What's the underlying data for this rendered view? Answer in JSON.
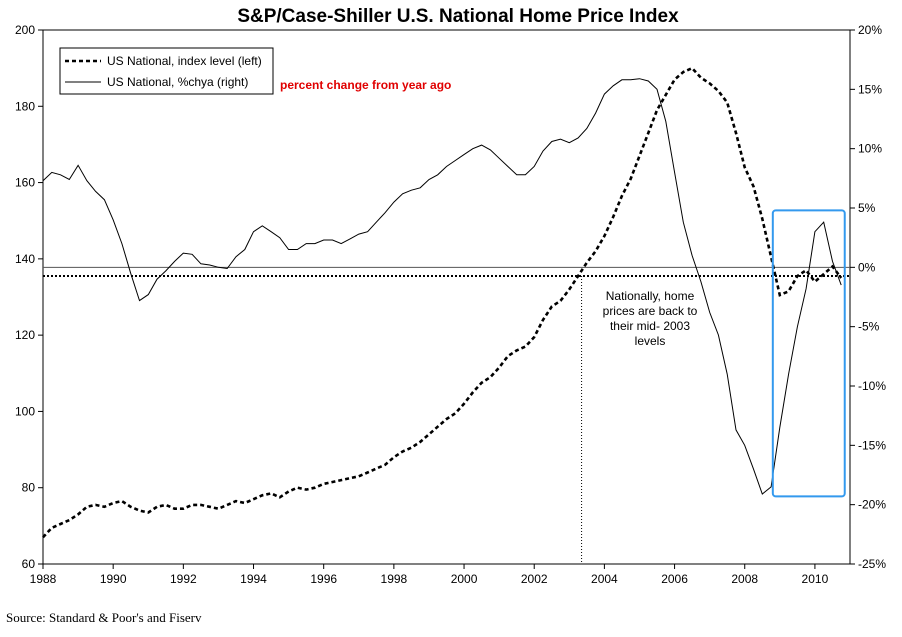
{
  "chart_data": {
    "type": "line",
    "title": "S&P/Case-Shiller U.S. National Home Price Index",
    "xlim": [
      1988,
      2011
    ],
    "x_ticks": [
      "1988",
      "1990",
      "1992",
      "1994",
      "1996",
      "1998",
      "2000",
      "2002",
      "2004",
      "2006",
      "2008",
      "2010"
    ],
    "y_left": {
      "lim": [
        60,
        200
      ],
      "ticks": [
        "60",
        "80",
        "100",
        "120",
        "140",
        "160",
        "180",
        "200"
      ]
    },
    "y_right": {
      "lim": [
        -25,
        20
      ],
      "ticks": [
        "-25%",
        "-20%",
        "-15%",
        "-10%",
        "-5%",
        "0%",
        "5%",
        "10%",
        "15%",
        "20%"
      ]
    },
    "legend": [
      {
        "label": "US National, index level (left)",
        "style": "dashed"
      },
      {
        "label": "US National, %chya (right)",
        "style": "solid"
      }
    ],
    "note": "percent change from year ago",
    "annotation": "Nationally, home prices are back to their mid- 2003 levels",
    "annotation_lines": [
      "Nationally, home",
      "prices are back to",
      "their mid- 2003",
      "levels"
    ],
    "reference_level": 135.5,
    "reference_year": 2003.35,
    "highlight_box": {
      "x_range": [
        2008.8,
        2010.85
      ],
      "y_right_range": [
        -19.3,
        4.8
      ],
      "color": "#3399ee"
    },
    "series": [
      {
        "name": "US National, index level (left)",
        "axis": "left",
        "style": "dashed",
        "x": [
          1988.0,
          1988.25,
          1988.5,
          1988.75,
          1989.0,
          1989.25,
          1989.5,
          1989.75,
          1990.0,
          1990.25,
          1990.5,
          1990.75,
          1991.0,
          1991.25,
          1991.5,
          1991.75,
          1992.0,
          1992.25,
          1992.5,
          1992.75,
          1993.0,
          1993.25,
          1993.5,
          1993.75,
          1994.0,
          1994.25,
          1994.5,
          1994.75,
          1995.0,
          1995.25,
          1995.5,
          1995.75,
          1996.0,
          1996.25,
          1996.5,
          1996.75,
          1997.0,
          1997.25,
          1997.5,
          1997.75,
          1998.0,
          1998.25,
          1998.5,
          1998.75,
          1999.0,
          1999.25,
          1999.5,
          1999.75,
          2000.0,
          2000.25,
          2000.5,
          2000.75,
          2001.0,
          2001.25,
          2001.5,
          2001.75,
          2002.0,
          2002.25,
          2002.5,
          2002.75,
          2003.0,
          2003.25,
          2003.5,
          2003.75,
          2004.0,
          2004.25,
          2004.5,
          2004.75,
          2005.0,
          2005.25,
          2005.5,
          2005.75,
          2006.0,
          2006.25,
          2006.5,
          2006.75,
          2007.0,
          2007.25,
          2007.5,
          2007.75,
          2008.0,
          2008.25,
          2008.5,
          2008.75,
          2009.0,
          2009.25,
          2009.5,
          2009.75,
          2010.0,
          2010.25,
          2010.5,
          2010.75
        ],
        "values": [
          67.0,
          69.5,
          70.5,
          71.5,
          73.0,
          75.0,
          75.5,
          75.0,
          76.0,
          76.5,
          75.0,
          74.0,
          73.5,
          75.0,
          75.5,
          74.5,
          74.5,
          75.5,
          75.5,
          75.0,
          74.5,
          75.5,
          76.5,
          76.0,
          77.0,
          78.0,
          78.5,
          77.5,
          79.0,
          80.0,
          79.5,
          80.0,
          81.0,
          81.5,
          82.0,
          82.5,
          83.0,
          84.0,
          85.0,
          86.0,
          88.0,
          89.5,
          90.5,
          92.0,
          94.0,
          96.0,
          98.0,
          99.5,
          102.0,
          105.0,
          107.5,
          109.0,
          111.5,
          114.5,
          116.0,
          117.0,
          119.5,
          124.0,
          127.5,
          129.0,
          132.0,
          135.5,
          139.0,
          142.0,
          146.0,
          151.0,
          156.5,
          161.0,
          167.0,
          173.0,
          179.0,
          183.0,
          187.0,
          189.0,
          190.0,
          187.5,
          186.0,
          184.0,
          181.0,
          173.0,
          164.0,
          159.0,
          150.5,
          140.5,
          130.5,
          131.5,
          135.5,
          137.0,
          134.0,
          136.0,
          138.0,
          135.0
        ]
      },
      {
        "name": "US National, %chya (right)",
        "axis": "right",
        "style": "solid",
        "x": [
          1988.0,
          1988.25,
          1988.5,
          1988.75,
          1989.0,
          1989.25,
          1989.5,
          1989.75,
          1990.0,
          1990.25,
          1990.5,
          1990.75,
          1991.0,
          1991.25,
          1991.5,
          1991.75,
          1992.0,
          1992.25,
          1992.5,
          1992.75,
          1993.0,
          1993.25,
          1993.5,
          1993.75,
          1994.0,
          1994.25,
          1994.5,
          1994.75,
          1995.0,
          1995.25,
          1995.5,
          1995.75,
          1996.0,
          1996.25,
          1996.5,
          1996.75,
          1997.0,
          1997.25,
          1997.5,
          1997.75,
          1998.0,
          1998.25,
          1998.5,
          1998.75,
          1999.0,
          1999.25,
          1999.5,
          1999.75,
          2000.0,
          2000.25,
          2000.5,
          2000.75,
          2001.0,
          2001.25,
          2001.5,
          2001.75,
          2002.0,
          2002.25,
          2002.5,
          2002.75,
          2003.0,
          2003.25,
          2003.5,
          2003.75,
          2004.0,
          2004.25,
          2004.5,
          2004.75,
          2005.0,
          2005.25,
          2005.5,
          2005.75,
          2006.0,
          2006.25,
          2006.5,
          2006.75,
          2007.0,
          2007.25,
          2007.5,
          2007.75,
          2008.0,
          2008.25,
          2008.5,
          2008.75,
          2009.0,
          2009.25,
          2009.5,
          2009.75,
          2010.0,
          2010.25,
          2010.5,
          2010.75
        ],
        "values": [
          7.3,
          8.0,
          7.8,
          7.4,
          8.6,
          7.3,
          6.4,
          5.7,
          4.0,
          2.0,
          -0.5,
          -2.8,
          -2.3,
          -1.0,
          -0.3,
          0.5,
          1.2,
          1.1,
          0.3,
          0.2,
          0.0,
          -0.1,
          0.9,
          1.5,
          3.0,
          3.5,
          3.0,
          2.5,
          1.5,
          1.5,
          2.0,
          2.0,
          2.3,
          2.3,
          2.0,
          2.4,
          2.8,
          3.0,
          3.8,
          4.6,
          5.5,
          6.2,
          6.5,
          6.7,
          7.4,
          7.8,
          8.5,
          9.0,
          9.5,
          10.0,
          10.3,
          9.9,
          9.2,
          8.5,
          7.8,
          7.8,
          8.5,
          9.8,
          10.6,
          10.8,
          10.5,
          10.9,
          11.7,
          13.0,
          14.6,
          15.3,
          15.8,
          15.8,
          15.9,
          15.7,
          15.0,
          12.3,
          8.0,
          3.8,
          1.0,
          -1.2,
          -3.8,
          -5.7,
          -9.0,
          -13.7,
          -15.0,
          -17.0,
          -19.1,
          -18.5,
          -13.5,
          -9.0,
          -5.0,
          -1.8,
          3.0,
          3.8,
          0.5,
          -1.5
        ]
      }
    ]
  },
  "source": "Source: Standard & Poor's and Fiserv"
}
